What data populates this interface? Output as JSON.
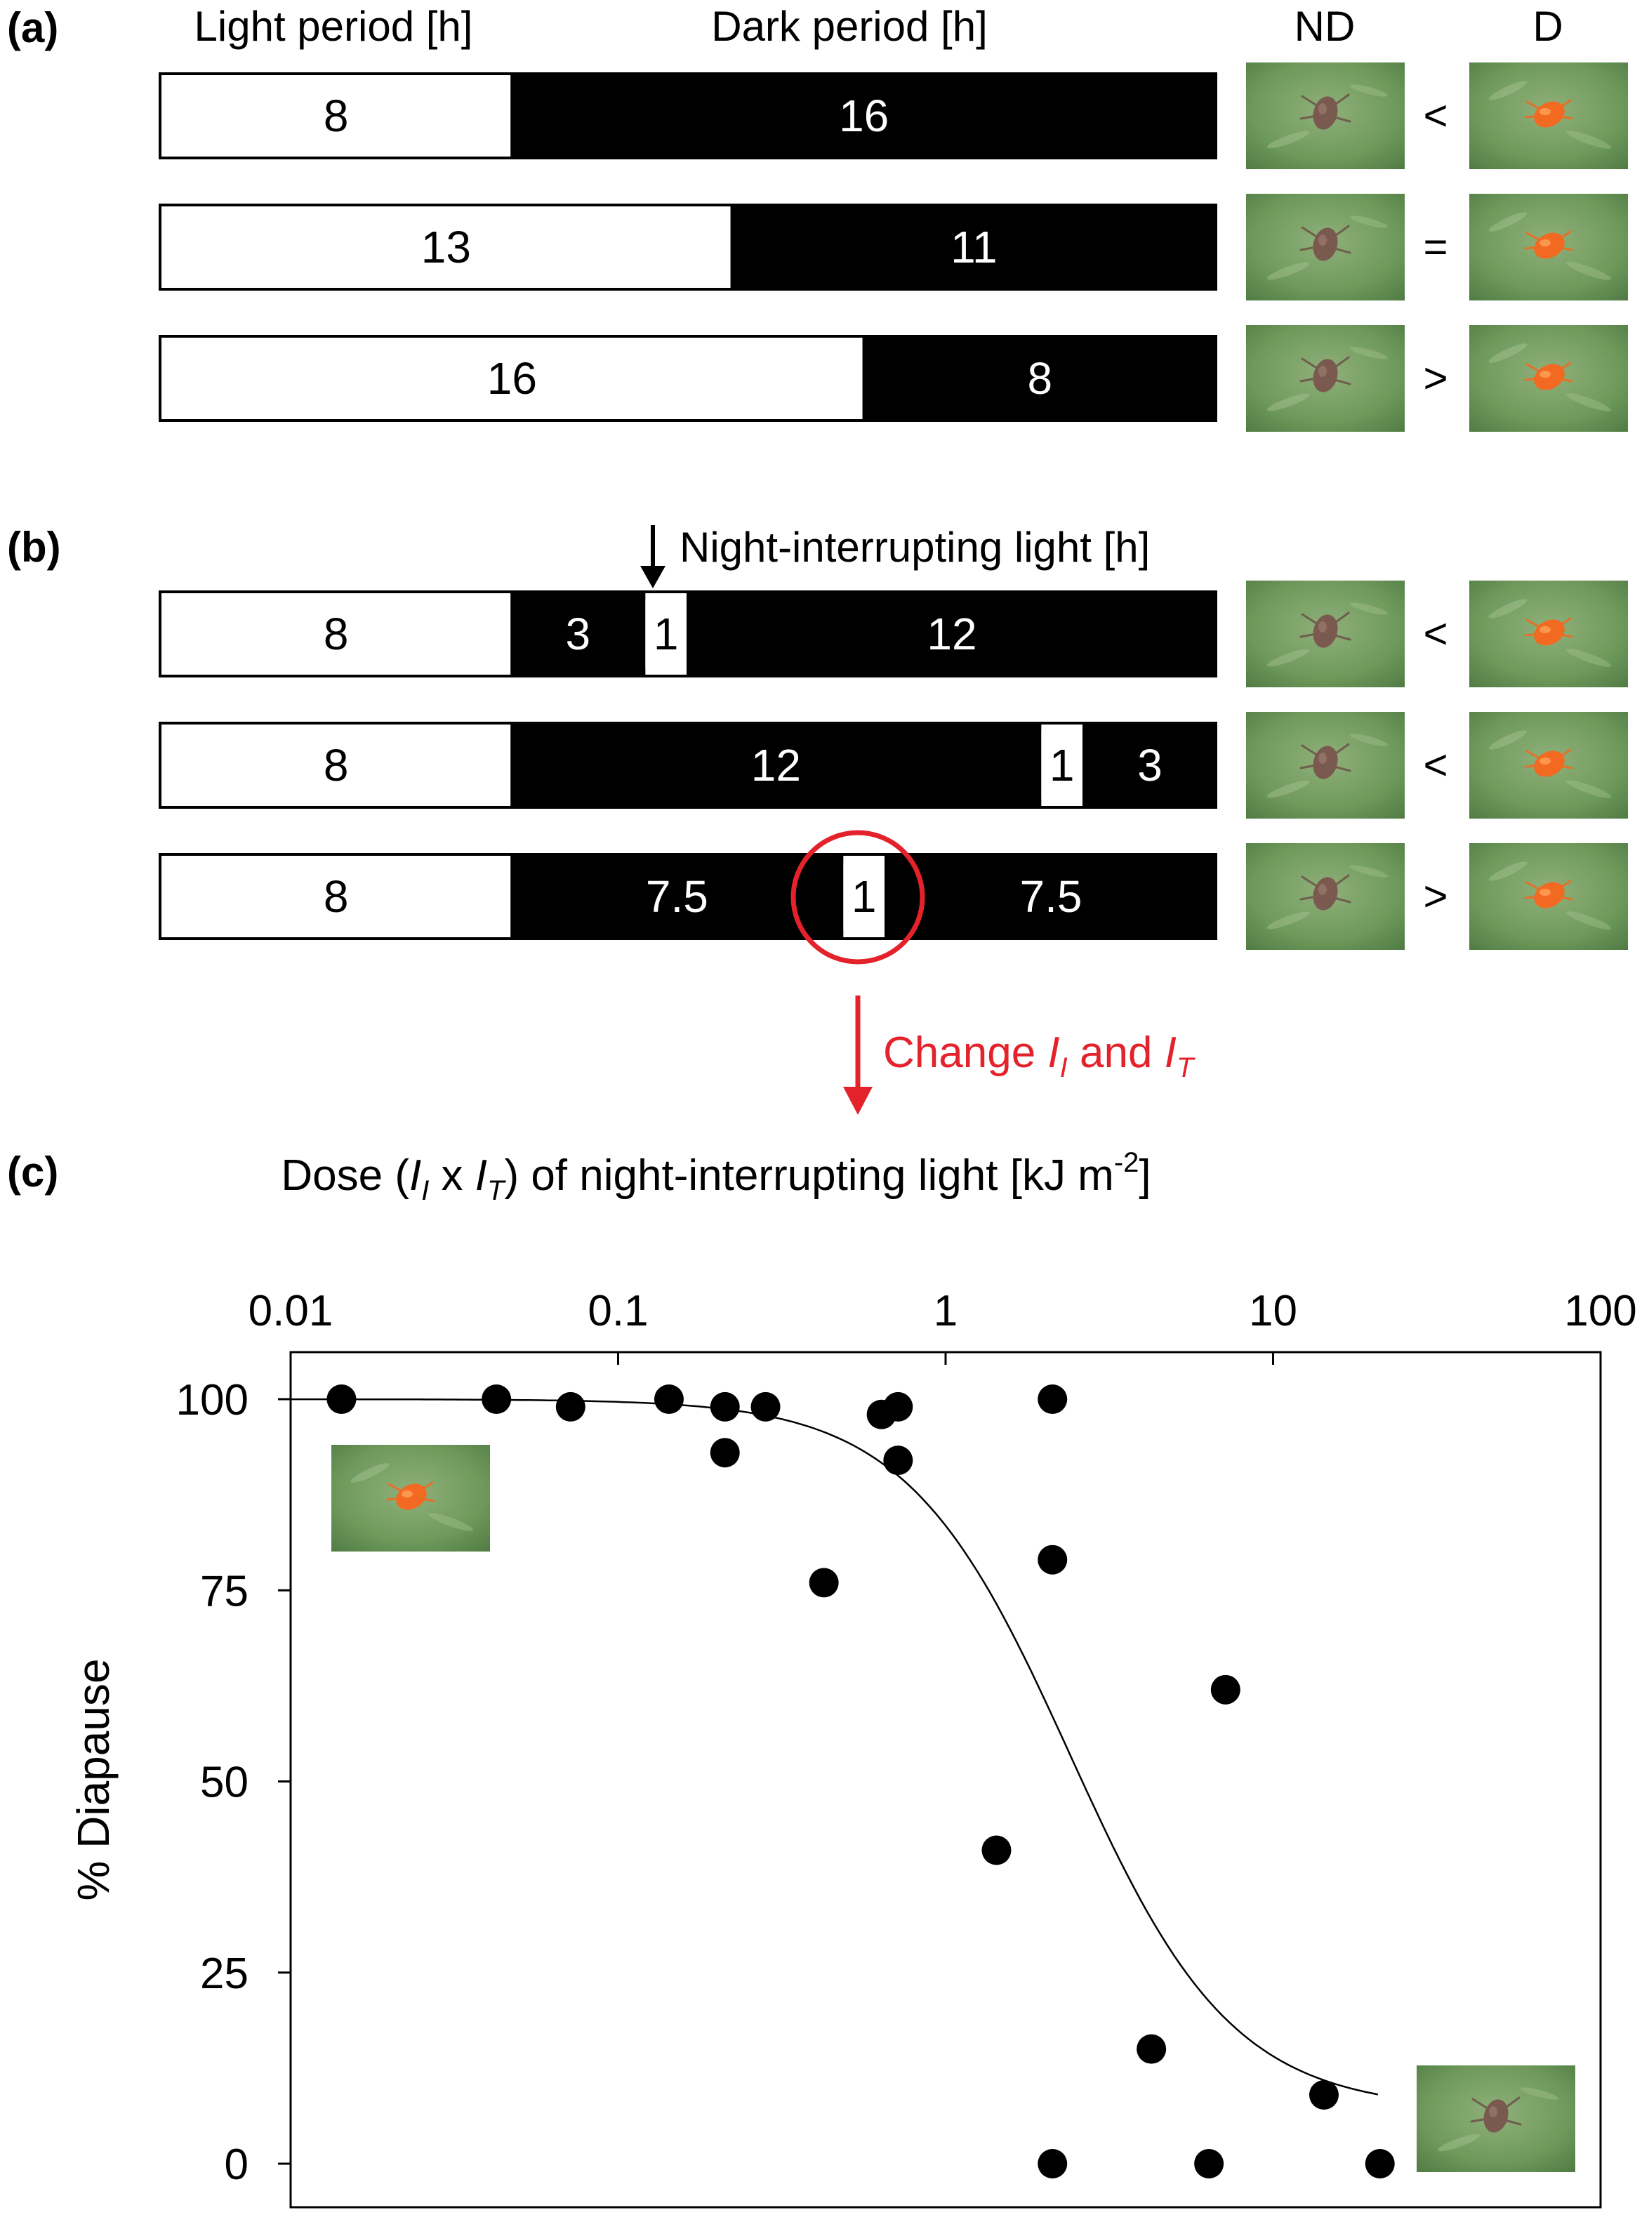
{
  "panel_a": {
    "label": "(a)",
    "header_light": "Light period [h]",
    "header_dark": "Dark period [h]",
    "header_nd": "ND",
    "header_d": "D",
    "rows": [
      {
        "segments": [
          {
            "hours": 8,
            "color": "white",
            "label": "8"
          },
          {
            "hours": 16,
            "color": "black",
            "label": "16"
          }
        ],
        "relation": "<"
      },
      {
        "segments": [
          {
            "hours": 13,
            "color": "white",
            "label": "13"
          },
          {
            "hours": 11,
            "color": "black",
            "label": "11"
          }
        ],
        "relation": "="
      },
      {
        "segments": [
          {
            "hours": 16,
            "color": "white",
            "label": "16"
          },
          {
            "hours": 8,
            "color": "black",
            "label": "8"
          }
        ],
        "relation": ">"
      }
    ]
  },
  "panel_b": {
    "label": "(b)",
    "nil_label": "Night-interrupting light [h]",
    "rows": [
      {
        "segments": [
          {
            "hours": 8,
            "color": "white",
            "label": "8"
          },
          {
            "hours": 3,
            "color": "black",
            "label": "3"
          },
          {
            "hours": 1,
            "color": "white",
            "label": "1"
          },
          {
            "hours": 12,
            "color": "black",
            "label": "12"
          }
        ],
        "relation": "<"
      },
      {
        "segments": [
          {
            "hours": 8,
            "color": "white",
            "label": "8"
          },
          {
            "hours": 12,
            "color": "black",
            "label": "12"
          },
          {
            "hours": 1,
            "color": "white",
            "label": "1"
          },
          {
            "hours": 3,
            "color": "black",
            "label": "3"
          }
        ],
        "relation": "<"
      },
      {
        "segments": [
          {
            "hours": 8,
            "color": "white",
            "label": "8"
          },
          {
            "hours": 7.5,
            "color": "black",
            "label": "7.5"
          },
          {
            "hours": 1,
            "color": "white",
            "label": "1"
          },
          {
            "hours": 7.5,
            "color": "black",
            "label": "7.5"
          }
        ],
        "relation": ">"
      }
    ],
    "change_label_prefix": "Change",
    "change_i": "I",
    "change_i_sub": "I",
    "change_and": "and",
    "change_t": "I",
    "change_t_sub": "T"
  },
  "colors": {
    "accent_red": "#e4222b",
    "bar_black": "#000000",
    "bar_white": "#ffffff",
    "leaf_green": "#6f9a5c",
    "mite_orange": "#f26a21",
    "mite_brown": "#7a5a4f"
  },
  "chart_data": {
    "label": "(c)",
    "type": "scatter",
    "title_parts": [
      "Dose (",
      "I",
      "I",
      " x ",
      "I",
      "T",
      ") of night-interrupting light [kJ m",
      "-2",
      "]"
    ],
    "xlabel": "Dose of night-interrupting light [kJ m-2]",
    "ylabel": "% Diapause",
    "xscale": "log",
    "xlim": [
      0.01,
      100
    ],
    "ylim": [
      0,
      100
    ],
    "xticks": [
      0.01,
      0.1,
      1,
      10,
      100
    ],
    "xtick_labels": [
      "0.01",
      "0.1",
      "1",
      "10",
      "100"
    ],
    "yticks": [
      0,
      25,
      50,
      75,
      100
    ],
    "ytick_labels": [
      "0",
      "25",
      "50",
      "75",
      "100"
    ],
    "points": [
      {
        "x": 0.0143,
        "y": 100
      },
      {
        "x": 0.0425,
        "y": 100
      },
      {
        "x": 0.0716,
        "y": 99
      },
      {
        "x": 0.143,
        "y": 100
      },
      {
        "x": 0.212,
        "y": 99
      },
      {
        "x": 0.282,
        "y": 99
      },
      {
        "x": 0.212,
        "y": 93
      },
      {
        "x": 0.425,
        "y": 76
      },
      {
        "x": 0.637,
        "y": 98
      },
      {
        "x": 0.716,
        "y": 99
      },
      {
        "x": 0.716,
        "y": 92
      },
      {
        "x": 1.43,
        "y": 41
      },
      {
        "x": 2.12,
        "y": 100
      },
      {
        "x": 2.12,
        "y": 79
      },
      {
        "x": 2.12,
        "y": 0
      },
      {
        "x": 4.25,
        "y": 15
      },
      {
        "x": 6.37,
        "y": 0
      },
      {
        "x": 7.16,
        "y": 62
      },
      {
        "x": 14.3,
        "y": 9
      },
      {
        "x": 21.2,
        "y": 0
      }
    ],
    "fit_curve": {
      "type": "sigmoid",
      "top": 100,
      "bottom": 7,
      "log10_ec50": 0.38,
      "hill": 1.75,
      "x_range": [
        0.01,
        20.9
      ]
    }
  }
}
